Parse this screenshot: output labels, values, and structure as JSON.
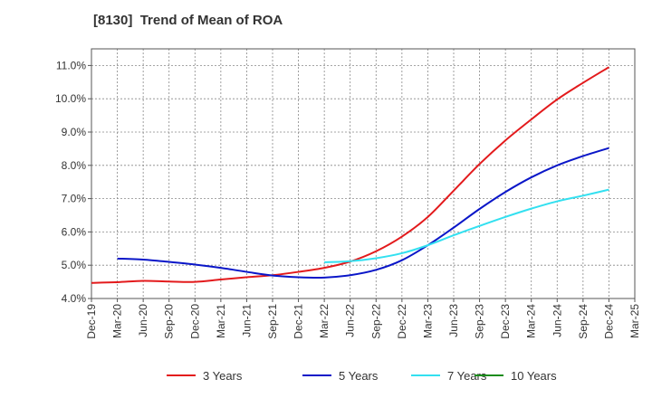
{
  "chart_data": {
    "type": "line",
    "title": "[8130]  Trend of Mean of ROA",
    "xlabel": "",
    "ylabel": "",
    "ylim": [
      4.0,
      11.5
    ],
    "y_ticks": [
      4.0,
      5.0,
      6.0,
      7.0,
      8.0,
      9.0,
      10.0,
      11.0
    ],
    "y_tick_labels": [
      "4.0%",
      "5.0%",
      "6.0%",
      "7.0%",
      "8.0%",
      "9.0%",
      "10.0%",
      "11.0%"
    ],
    "categories": [
      "Dec-19",
      "Mar-20",
      "Jun-20",
      "Sep-20",
      "Dec-20",
      "Mar-21",
      "Jun-21",
      "Sep-21",
      "Dec-21",
      "Mar-22",
      "Jun-22",
      "Sep-22",
      "Dec-22",
      "Mar-23",
      "Jun-23",
      "Sep-23",
      "Dec-23",
      "Mar-24",
      "Jun-24",
      "Sep-24",
      "Dec-24",
      "Mar-25"
    ],
    "grid": true,
    "legend_position": "bottom",
    "series": [
      {
        "name": "3 Years",
        "color": "#e31a1c",
        "values": [
          4.47,
          4.49,
          4.53,
          4.51,
          4.5,
          4.57,
          4.64,
          4.7,
          4.8,
          4.92,
          5.11,
          5.42,
          5.86,
          6.45,
          7.24,
          8.04,
          8.75,
          9.38,
          9.98,
          10.48,
          10.95,
          null
        ]
      },
      {
        "name": "5 Years",
        "color": "#0a16c8",
        "values": [
          null,
          5.2,
          5.17,
          5.1,
          5.02,
          4.92,
          4.8,
          4.69,
          4.64,
          4.63,
          4.7,
          4.86,
          5.15,
          5.6,
          6.13,
          6.69,
          7.2,
          7.64,
          8.0,
          8.28,
          8.52,
          null
        ]
      },
      {
        "name": "7 Years",
        "color": "#33e0f0",
        "values": [
          null,
          null,
          null,
          null,
          null,
          null,
          null,
          null,
          null,
          5.09,
          5.12,
          5.21,
          5.36,
          5.6,
          5.9,
          6.18,
          6.45,
          6.7,
          6.92,
          7.09,
          7.27,
          null
        ]
      },
      {
        "name": "10 Years",
        "color": "#1a8c1a",
        "values": [
          null,
          null,
          null,
          null,
          null,
          null,
          null,
          null,
          null,
          null,
          null,
          null,
          null,
          null,
          null,
          null,
          null,
          null,
          null,
          null,
          null,
          null
        ]
      }
    ]
  }
}
